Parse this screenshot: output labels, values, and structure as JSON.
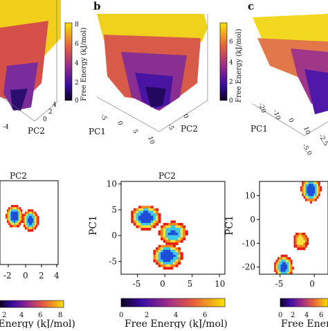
{
  "figure": {
    "panel_letters": [
      "b",
      "c"
    ]
  },
  "colors": {
    "surface_low": "#1c0b66",
    "surface_mid": "#c8385a",
    "surface_high": "#f7e300",
    "contour_blue": "#1f4fd6",
    "contour_cyan": "#3fc8e8",
    "contour_yellow": "#f5e23c",
    "contour_orange": "#f08a1c",
    "contour_red": "#e61e14",
    "frame": "#000000"
  },
  "colorbars": [
    {
      "label": "Free Energy (kJ/mol)",
      "ticks": [
        "8",
        "6",
        "4",
        "2",
        "0"
      ]
    },
    {
      "label": "Free Energy (kJ/mol)",
      "ticks": [
        "6",
        "4",
        "2",
        "0"
      ]
    },
    {
      "label": "Free Energy (kJ/mol)",
      "ticks": [
        "6",
        "4",
        "2",
        "0"
      ]
    }
  ],
  "chart_data": [
    {
      "type": "surface",
      "panel": "a (top)",
      "axis_labels": [
        "PC2"
      ],
      "axis_ticks": [
        "-4",
        "0",
        "2",
        "4"
      ],
      "zlabel": "Free Energy (kJ/mol)",
      "zlim": [
        0,
        8
      ]
    },
    {
      "type": "surface",
      "panel": "b (top)",
      "axis_labels": [
        "PC1",
        "PC2"
      ],
      "pc1_ticks": [
        "-5",
        "0",
        "5",
        "10"
      ],
      "pc2_ticks": [
        "-5",
        "0"
      ],
      "zlabel": "Free Energy (kJ/mol)",
      "zlim": [
        0,
        7
      ]
    },
    {
      "type": "surface",
      "panel": "c (top)",
      "axis_labels": [
        "PC1"
      ],
      "pc1_ticks": [
        "-20",
        "-10",
        "0",
        "10"
      ],
      "pc2_ticks": [
        "-5.0",
        "-2.5"
      ],
      "zlabel": "Free Energy (kJ/mol)",
      "zlim": [
        0,
        7
      ]
    },
    {
      "type": "heatmap",
      "panel": "a (bottom)",
      "title": "PC2",
      "x_ticks": [
        "-2",
        "0",
        "2",
        "4"
      ],
      "xlim": [
        -4,
        4
      ],
      "colorbar": {
        "label": "Free Energy (kJ/mol)",
        "ticks": [
          "2",
          "4",
          "6",
          "8"
        ],
        "range": [
          0,
          8
        ]
      },
      "minima": [
        {
          "x": -2.0,
          "y": 0.6,
          "depth": 0.0
        },
        {
          "x": 0.2,
          "y": 0.2,
          "depth": 0.6
        }
      ]
    },
    {
      "type": "heatmap",
      "panel": "b (bottom)",
      "title": "PC2",
      "xlabel": "PC2",
      "ylabel": "PC1",
      "xlim": [
        -8,
        11
      ],
      "ylim": [
        -7.5,
        10.5
      ],
      "x_ticks": [
        "-5",
        "0",
        "5",
        "10"
      ],
      "y_ticks": [
        "10",
        "5",
        "0",
        "-5"
      ],
      "colorbar": {
        "label": "Free Energy (kJ/mol)",
        "ticks": [
          "0",
          "2",
          "4",
          "6"
        ],
        "range": [
          0,
          7
        ]
      },
      "minima": [
        {
          "x": -3.5,
          "y": 3.5,
          "depth": 0.0
        },
        {
          "x": 0.5,
          "y": -4.0,
          "depth": 0.0
        },
        {
          "x": 1.5,
          "y": 0.5,
          "depth": 0.8
        }
      ]
    },
    {
      "type": "heatmap",
      "panel": "c (bottom)",
      "ylabel": "PC1",
      "xlim": [
        -8,
        2
      ],
      "ylim": [
        -23,
        16
      ],
      "y_ticks": [
        "10",
        "0",
        "-10",
        "-20"
      ],
      "x_ticks": [
        "-5",
        "0"
      ],
      "colorbar": {
        "label": "Free Energy (",
        "ticks": [
          "0",
          "2",
          "4",
          "6"
        ],
        "range": [
          0,
          7
        ]
      },
      "minima": [
        {
          "x": -0.5,
          "y": 12.5,
          "depth": 0.0
        },
        {
          "x": -4.5,
          "y": -20.0,
          "depth": 0.5
        },
        {
          "x": -2.0,
          "y": -9.0,
          "depth": 2.5
        }
      ]
    }
  ]
}
